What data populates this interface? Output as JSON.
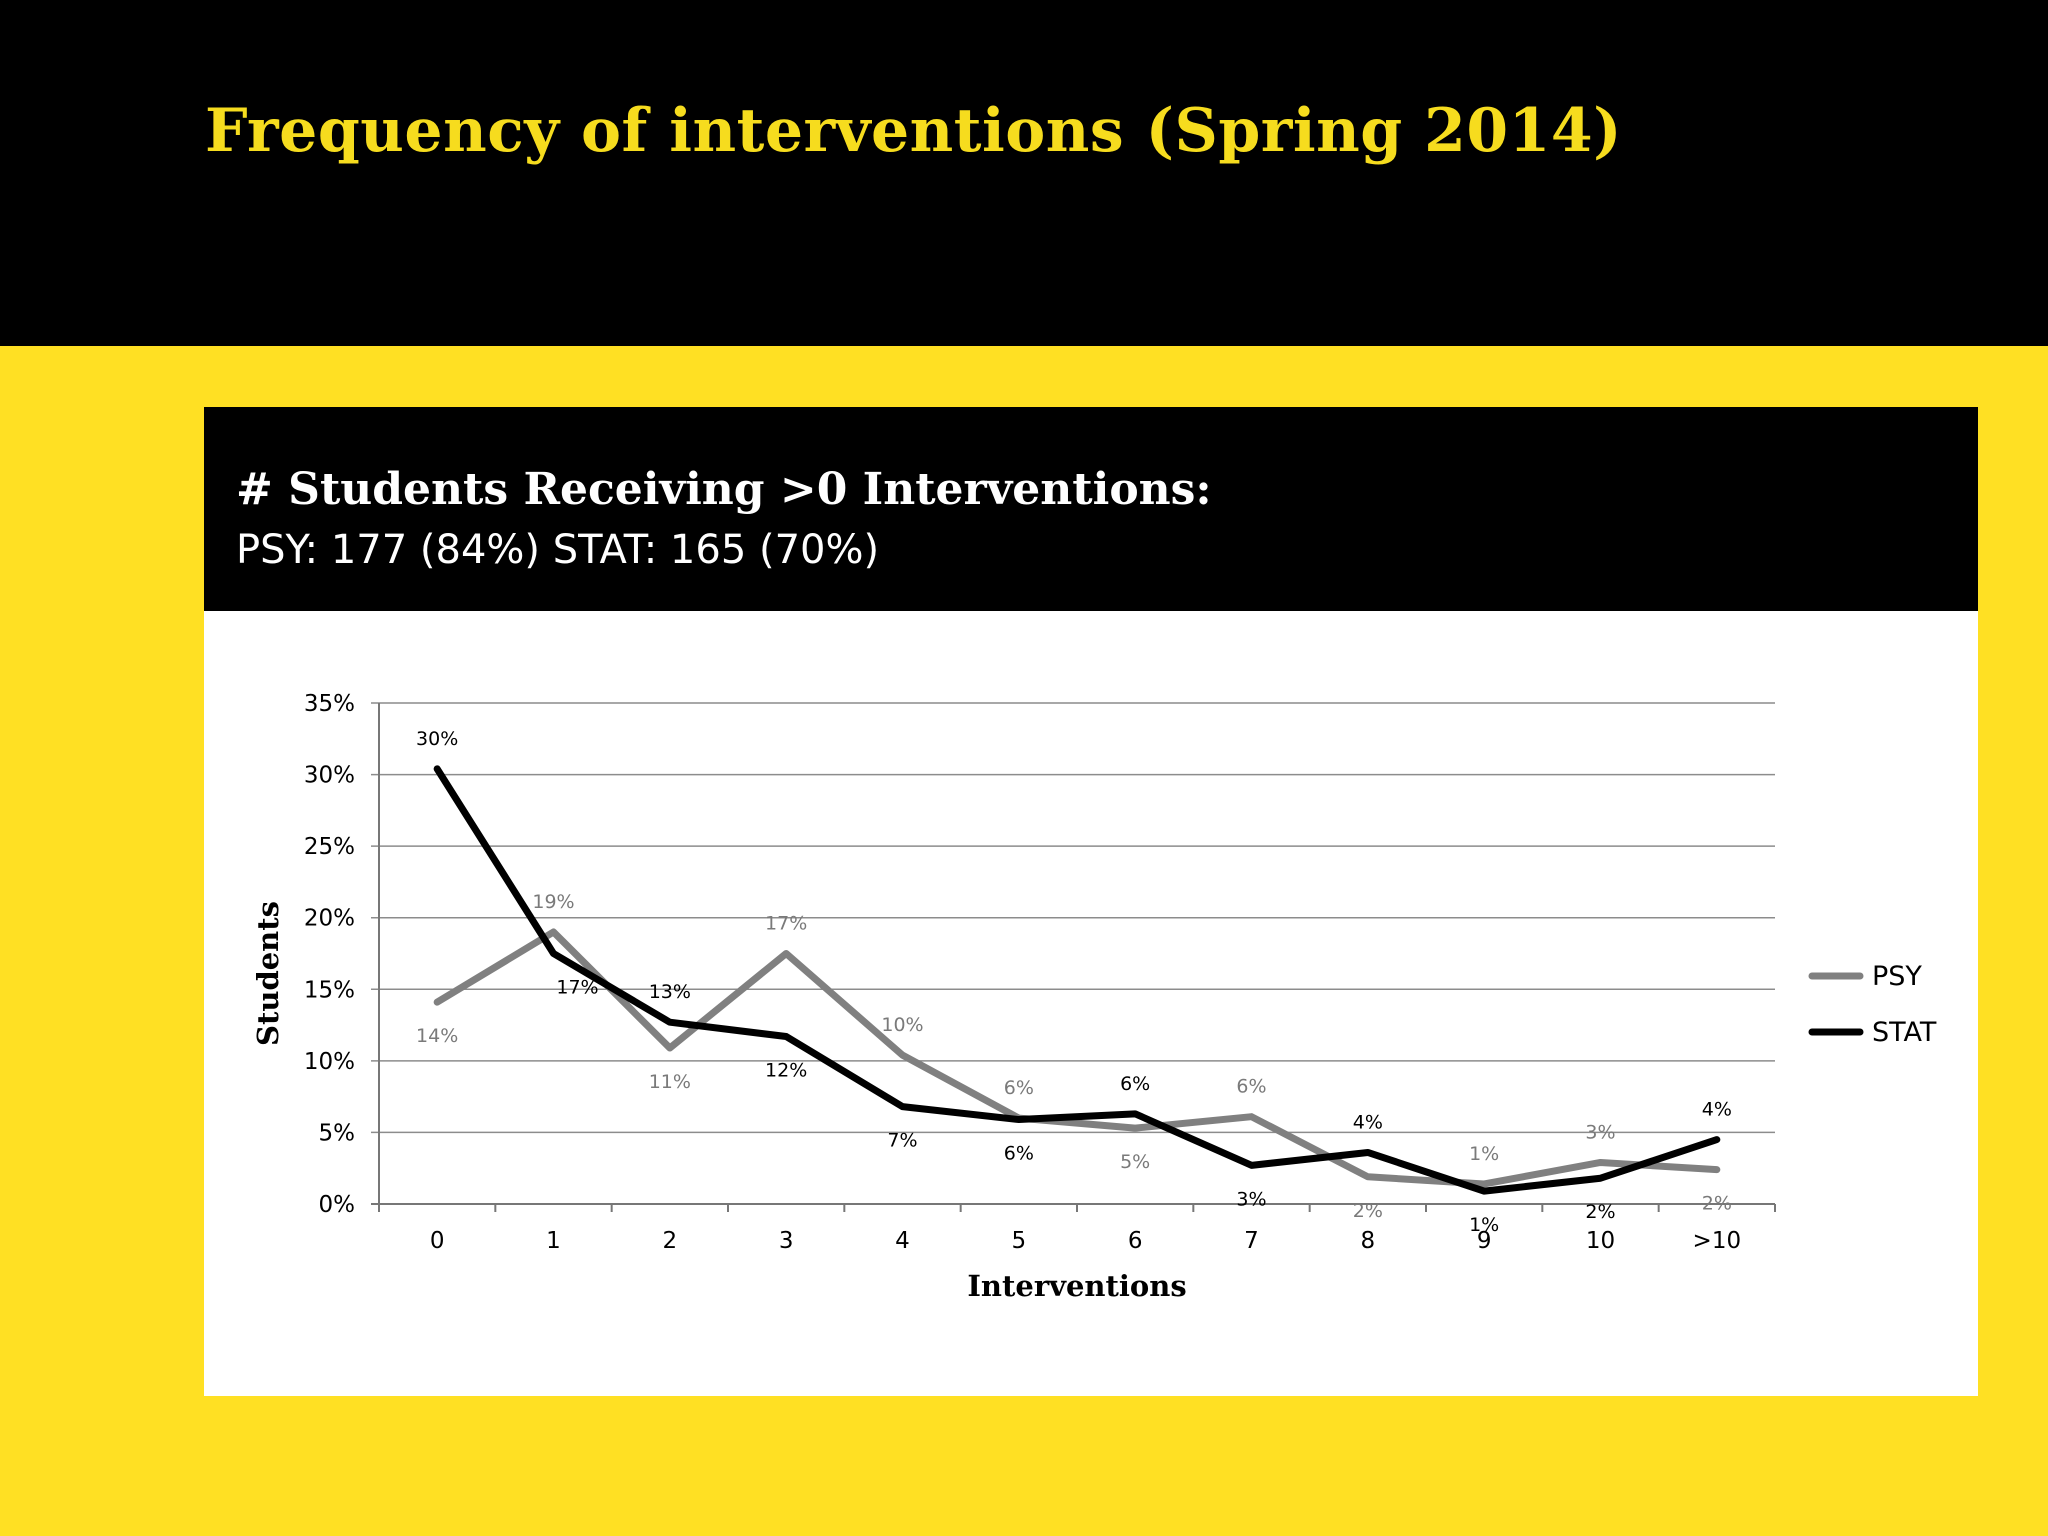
{
  "slide": {
    "title": "Frequency of interventions (Spring 2014)"
  },
  "panel": {
    "heading": "# Students Receiving >0 Interventions:",
    "subheading": "PSY: 177 (84%) STAT: 165 (70%)"
  },
  "colors": {
    "background": "#FFE023",
    "title": "#F6DC1E",
    "band": "#000000",
    "psy": "#808080",
    "stat": "#000000"
  },
  "chart_data": {
    "type": "line",
    "xlabel": "Interventions",
    "ylabel": "Students",
    "categories": [
      "0",
      "1",
      "2",
      "3",
      "4",
      "5",
      "6",
      "7",
      "8",
      "9",
      "10",
      ">10"
    ],
    "ylim": [
      0,
      35
    ],
    "yticks": [
      0,
      5,
      10,
      15,
      20,
      25,
      30,
      35
    ],
    "ytick_labels": [
      "0%",
      "5%",
      "10%",
      "15%",
      "20%",
      "25%",
      "30%",
      "35%"
    ],
    "grid": true,
    "legend_position": "right",
    "series": [
      {
        "name": "PSY",
        "color": "#808080",
        "values": [
          14.1,
          19.0,
          10.9,
          17.5,
          10.4,
          6.0,
          5.3,
          6.1,
          1.9,
          1.4,
          2.9,
          2.4
        ],
        "labels": [
          "14%",
          "19%",
          "11%",
          "17%",
          "10%",
          "6%",
          "5%",
          "6%",
          "2%",
          "1%",
          "3%",
          "2%"
        ]
      },
      {
        "name": "STAT",
        "color": "#000000",
        "values": [
          30.4,
          17.5,
          12.7,
          11.7,
          6.8,
          5.9,
          6.3,
          2.7,
          3.6,
          0.9,
          1.8,
          4.5
        ],
        "labels": [
          "30%",
          "17%",
          "13%",
          "12%",
          "7%",
          "6%",
          "6%",
          "3%",
          "4%",
          "1%",
          "2%",
          "4%"
        ]
      }
    ]
  }
}
